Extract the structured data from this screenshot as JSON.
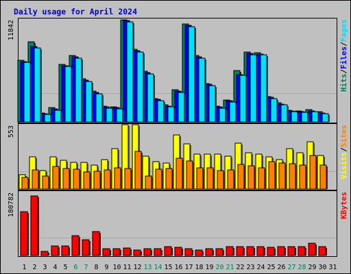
{
  "title": "Daily usage for April 2024",
  "colors": {
    "background": "#c0c0c0",
    "title": "#0000cc",
    "hits": "#00805c",
    "files": "#0000ff",
    "pages": "#00e0ff",
    "visits": "#ffff00",
    "sites": "#ff8000",
    "kbytes": "#ff0000",
    "weekday_label": "#000000",
    "weekend_label": "#00805c"
  },
  "legends": {
    "top": [
      {
        "label": "Hits",
        "color": "#00805c"
      },
      {
        "sep": "/"
      },
      {
        "label": "Files",
        "color": "#0000ff"
      },
      {
        "sep": "/"
      },
      {
        "label": "Pages",
        "color": "#00e0ff"
      }
    ],
    "mid": [
      {
        "label": "Visits",
        "color": "#ffff00"
      },
      {
        "sep": "/"
      },
      {
        "label": "Sites",
        "color": "#ff8000"
      }
    ],
    "bot": [
      {
        "label": "KBytes",
        "color": "#ff0000"
      }
    ]
  },
  "chart_data": [
    {
      "type": "bar",
      "panel": "hits_files_pages",
      "categories": [
        "1",
        "2",
        "3",
        "4",
        "5",
        "6",
        "7",
        "8",
        "9",
        "10",
        "11",
        "12",
        "13",
        "14",
        "15",
        "16",
        "17",
        "18",
        "19",
        "20",
        "21",
        "22",
        "23",
        "24",
        "25",
        "26",
        "27",
        "28",
        "29",
        "30",
        "31"
      ],
      "ylim": [
        0,
        11842
      ],
      "y_tick_label": "11842",
      "series": [
        {
          "name": "Hits",
          "values": [
            7070,
            9230,
            1010,
            1640,
            6650,
            7630,
            4960,
            3530,
            1830,
            1710,
            11780,
            8400,
            5820,
            2720,
            1980,
            3710,
            11260,
            7630,
            4450,
            1830,
            2550,
            5960,
            8020,
            7960,
            2950,
            2200,
            1380,
            1270,
            1430,
            1180,
            0
          ]
        },
        {
          "name": "Files",
          "values": [
            6930,
            8690,
            940,
            1510,
            6450,
            7490,
            4780,
            3400,
            1740,
            1620,
            11650,
            8190,
            5700,
            2580,
            1850,
            3530,
            11120,
            7490,
            4310,
            1700,
            2440,
            5460,
            7900,
            7830,
            2810,
            2070,
            1290,
            1180,
            1300,
            1060,
            0
          ]
        },
        {
          "name": "Pages",
          "values": [
            6880,
            8550,
            880,
            1380,
            6360,
            7350,
            4640,
            3260,
            1610,
            1480,
            11510,
            8060,
            5560,
            2450,
            1710,
            3400,
            10990,
            7350,
            4170,
            1570,
            2310,
            5330,
            7760,
            7700,
            2680,
            1940,
            1200,
            1080,
            1180,
            930,
            0
          ]
        }
      ]
    },
    {
      "type": "bar",
      "panel": "visits_sites",
      "categories": [
        "1",
        "2",
        "3",
        "4",
        "5",
        "6",
        "7",
        "8",
        "9",
        "10",
        "11",
        "12",
        "13",
        "14",
        "15",
        "16",
        "17",
        "18",
        "19",
        "20",
        "21",
        "22",
        "23",
        "24",
        "25",
        "26",
        "27",
        "28",
        "29",
        "30",
        "31"
      ],
      "ylim": [
        0,
        553
      ],
      "y_tick_label": "553",
      "series": [
        {
          "name": "Visits",
          "values": [
            121,
            275,
            160,
            275,
            245,
            231,
            231,
            207,
            255,
            349,
            553,
            553,
            280,
            236,
            221,
            462,
            389,
            300,
            300,
            300,
            280,
            394,
            310,
            300,
            275,
            251,
            349,
            310,
            403,
            290,
            0
          ]
        },
        {
          "name": "Sites",
          "values": [
            98,
            164,
            111,
            193,
            174,
            168,
            148,
            153,
            162,
            181,
            179,
            322,
            111,
            172,
            177,
            267,
            240,
            180,
            182,
            159,
            166,
            212,
            200,
            184,
            237,
            222,
            216,
            203,
            287,
            207,
            0
          ]
        }
      ]
    },
    {
      "type": "bar",
      "panel": "kbytes",
      "categories": [
        "1",
        "2",
        "3",
        "4",
        "5",
        "6",
        "7",
        "8",
        "9",
        "10",
        "11",
        "12",
        "13",
        "14",
        "15",
        "16",
        "17",
        "18",
        "19",
        "20",
        "21",
        "22",
        "23",
        "24",
        "25",
        "26",
        "27",
        "28",
        "29",
        "30",
        "31"
      ],
      "ylim": [
        0,
        180782
      ],
      "y_tick_label": "180782",
      "series": [
        {
          "name": "KBytes",
          "values": [
            124200,
            168600,
            11700,
            28100,
            28100,
            56300,
            45400,
            67600,
            18700,
            18700,
            20600,
            15000,
            18700,
            18700,
            24400,
            23400,
            18700,
            15000,
            18700,
            18700,
            26200,
            24400,
            24400,
            24400,
            22500,
            24400,
            24400,
            24400,
            35600,
            24400,
            0
          ]
        }
      ]
    }
  ],
  "x_axis": {
    "labels": [
      "1",
      "2",
      "3",
      "4",
      "5",
      "6",
      "7",
      "8",
      "9",
      "10",
      "11",
      "12",
      "13",
      "14",
      "15",
      "16",
      "17",
      "18",
      "19",
      "20",
      "21",
      "22",
      "23",
      "24",
      "25",
      "26",
      "27",
      "28",
      "29",
      "30",
      "31"
    ],
    "weekend_days": [
      "6",
      "7",
      "13",
      "14",
      "20",
      "21",
      "27",
      "28"
    ]
  }
}
